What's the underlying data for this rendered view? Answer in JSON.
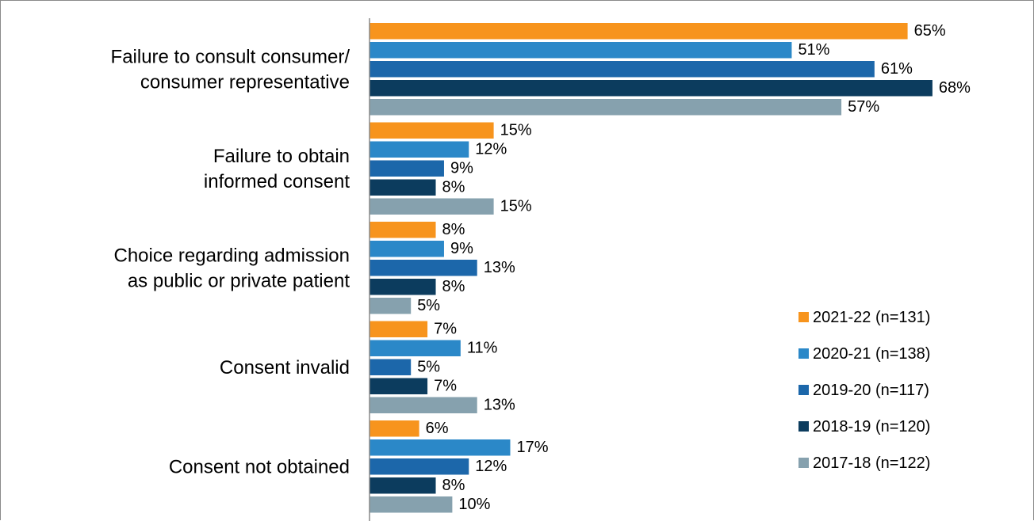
{
  "chart_data": {
    "type": "bar",
    "orientation": "horizontal",
    "categories": [
      [
        "Failure to consult consumer/",
        "consumer representative"
      ],
      [
        "Failure to obtain",
        "informed consent"
      ],
      [
        "Choice regarding admission",
        "as public or private patient"
      ],
      [
        "Consent invalid"
      ],
      [
        "Consent not obtained"
      ]
    ],
    "series": [
      {
        "name": "2021-22 (n=131)",
        "color": "#F7941D",
        "values": [
          65,
          15,
          8,
          7,
          6
        ]
      },
      {
        "name": "2020-21 (n=138)",
        "color": "#2B88C8",
        "values": [
          51,
          12,
          9,
          11,
          17
        ]
      },
      {
        "name": "2019-20 (n=117)",
        "color": "#1C67AA",
        "values": [
          61,
          9,
          13,
          5,
          12
        ]
      },
      {
        "name": "2018-19 (n=120)",
        "color": "#0C3C5E",
        "values": [
          68,
          8,
          8,
          7,
          8
        ]
      },
      {
        "name": "2017-18 (n=122)",
        "color": "#86A1AE",
        "values": [
          57,
          15,
          5,
          13,
          10
        ]
      }
    ],
    "value_suffix": "%",
    "xlim": [
      0,
      70
    ],
    "grid": false,
    "legend_position": "right"
  }
}
